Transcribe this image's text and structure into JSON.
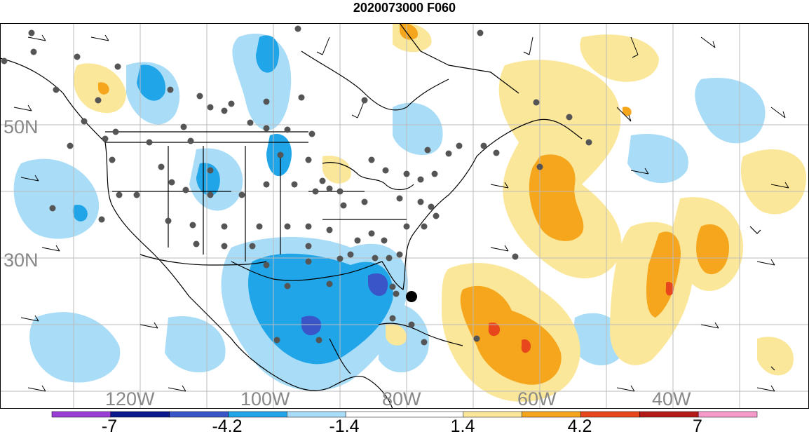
{
  "title": "2020073000 F060",
  "map": {
    "lat_labels": [
      "50N",
      "30N"
    ],
    "lon_labels": [
      "120W",
      "100W",
      "80W",
      "60W",
      "40W"
    ],
    "colors": {
      "neg_strong": "#1fa5e8",
      "neg_light": "#a8dcf7",
      "neg_dark": "#3a55c8",
      "pos_light": "#fbe79a",
      "pos_mid": "#f6a61c",
      "pos_strong": "#e8461c",
      "station": "#555555",
      "coast": "#000000",
      "grid": "#bbbbbb"
    }
  },
  "colorbar": {
    "colors": [
      "#9a3fd6",
      "#0b1a8c",
      "#3a55c8",
      "#1fa5e8",
      "#a8dcf7",
      "#ffffff",
      "#fbe79a",
      "#f6a61c",
      "#e8461c",
      "#b51a1a",
      "#f59acb"
    ],
    "labels": [
      "-7",
      "-4.2",
      "-1.4",
      "1.4",
      "4.2",
      "7"
    ]
  }
}
